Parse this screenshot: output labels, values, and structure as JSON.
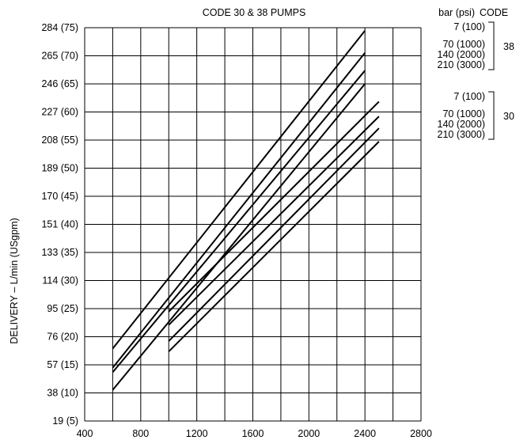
{
  "chart_data": {
    "type": "line",
    "title": "CODE 30 & 38 PUMPS",
    "xlabel": "",
    "ylabel": "DELIVERY – L/min (USgpm)",
    "xlim": [
      400,
      2800
    ],
    "ylim": [
      19,
      284
    ],
    "x_ticks": [
      400,
      800,
      1200,
      1600,
      2000,
      2400,
      2800
    ],
    "x_tick_labels": [
      "400",
      "800",
      "1200",
      "1600",
      "2000",
      "2400",
      "2800"
    ],
    "y_ticks": [
      19,
      38,
      57,
      76,
      95,
      114,
      133,
      151,
      170,
      189,
      208,
      227,
      246,
      265,
      284
    ],
    "y_tick_labels": [
      "19 (5)",
      "38 (10)",
      "57 (15)",
      "76 (20)",
      "95 (25)",
      "114 (30)",
      "133 (35)",
      "151 (40)",
      "170 (45)",
      "189 (50)",
      "208 (55)",
      "227 (60)",
      "246 (65)",
      "265 (70)",
      "284 (75)"
    ],
    "grid": true,
    "legend_header": {
      "pressure": "bar (psi)",
      "code": "CODE"
    },
    "legend_groups": [
      {
        "code": "38",
        "pressures": [
          "7 (100)",
          "70 (1000)",
          "140 (2000)",
          "210 (3000)"
        ]
      },
      {
        "code": "30",
        "pressures": [
          "7 (100)",
          "70 (1000)",
          "140 (2000)",
          "210 (3000)"
        ]
      }
    ],
    "series": [
      {
        "name": "38 – 7 (100)",
        "x": [
          600,
          2400
        ],
        "y": [
          68,
          282
        ]
      },
      {
        "name": "38 – 70 (1000)",
        "x": [
          600,
          2400
        ],
        "y": [
          55,
          267
        ]
      },
      {
        "name": "38 – 140 (2000)",
        "x": [
          600,
          2400
        ],
        "y": [
          52,
          255
        ]
      },
      {
        "name": "38 – 210 (3000)",
        "x": [
          600,
          2400
        ],
        "y": [
          40,
          246
        ]
      },
      {
        "name": "30 – 7 (100)",
        "x": [
          1000,
          2500
        ],
        "y": [
          93,
          234
        ]
      },
      {
        "name": "30 – 70 (1000)",
        "x": [
          1000,
          2500
        ],
        "y": [
          84,
          224
        ]
      },
      {
        "name": "30 – 140 (2000)",
        "x": [
          1000,
          2500
        ],
        "y": [
          73,
          216
        ]
      },
      {
        "name": "30 – 210 (3000)",
        "x": [
          1000,
          2500
        ],
        "y": [
          66,
          207
        ]
      }
    ]
  }
}
